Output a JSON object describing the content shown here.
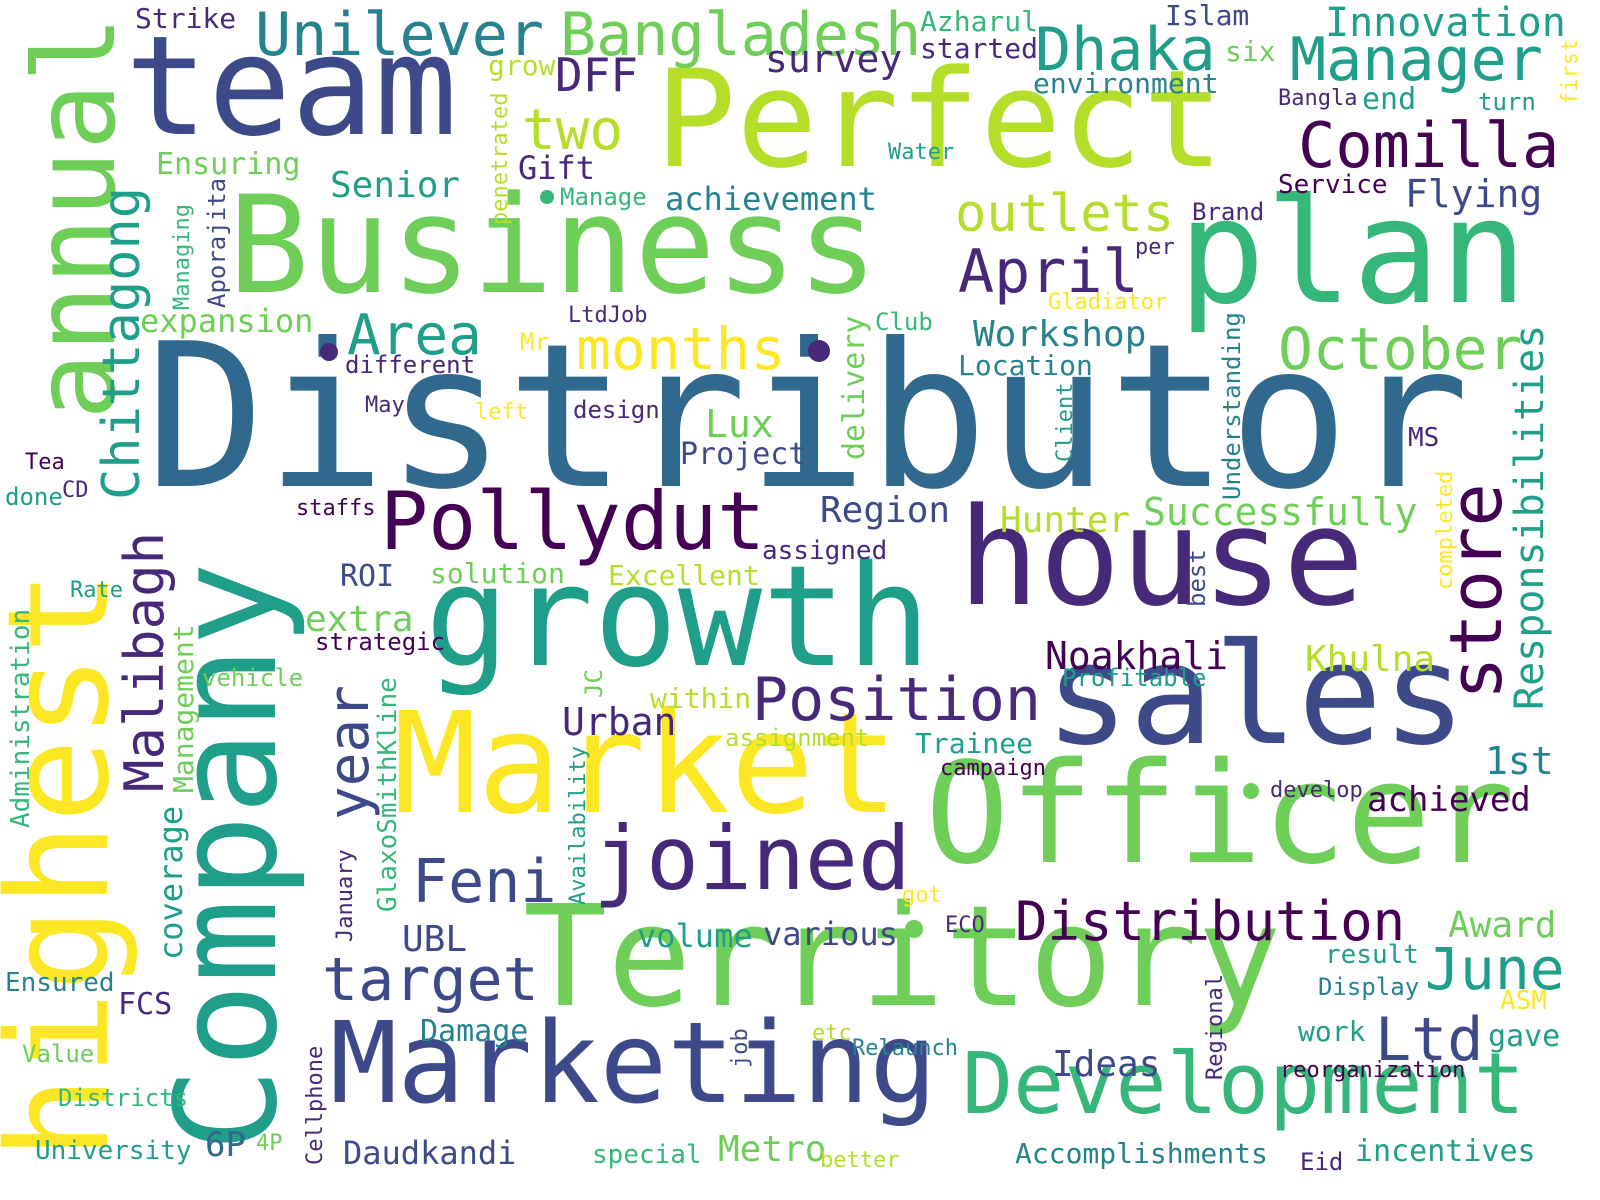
{
  "palette": {
    "c1": "#440154",
    "c2": "#482878",
    "c3": "#3e4989",
    "c4": "#31688e",
    "c5": "#26828e",
    "c6": "#1f9e89",
    "c7": "#35b779",
    "c8": "#6ece58",
    "c9": "#b5de2b",
    "c10": "#fde725"
  },
  "words": [
    {
      "id": "distributor",
      "text": "Distributor"
    },
    {
      "id": "perfect",
      "text": "Perfect"
    },
    {
      "id": "business",
      "text": "Business"
    },
    {
      "id": "plan",
      "text": "plan"
    },
    {
      "id": "team",
      "text": "team"
    },
    {
      "id": "growth",
      "text": "growth"
    },
    {
      "id": "house",
      "text": "house"
    },
    {
      "id": "sales",
      "text": "sales"
    },
    {
      "id": "market",
      "text": "Market"
    },
    {
      "id": "officer",
      "text": "Officer"
    },
    {
      "id": "territory",
      "text": "Territory"
    },
    {
      "id": "company",
      "text": "Company"
    },
    {
      "id": "highest",
      "text": "highest"
    },
    {
      "id": "annual",
      "text": "annual"
    },
    {
      "id": "marketing",
      "text": "Marketing"
    },
    {
      "id": "development",
      "text": "Development"
    },
    {
      "id": "joined",
      "text": "joined"
    },
    {
      "id": "pollydut",
      "text": "Pollydut"
    },
    {
      "id": "unilever",
      "text": "Unilever"
    },
    {
      "id": "bangladesh",
      "text": "Bangladesh"
    },
    {
      "id": "dhaka",
      "text": "Dhaka"
    },
    {
      "id": "manager",
      "text": "Manager"
    },
    {
      "id": "innovation",
      "text": "Innovation"
    },
    {
      "id": "comilla",
      "text": "Comilla"
    },
    {
      "id": "store",
      "text": "store"
    },
    {
      "id": "responsibilities",
      "text": "Responsibilities"
    },
    {
      "id": "october",
      "text": "October"
    },
    {
      "id": "april",
      "text": "April"
    },
    {
      "id": "outlets",
      "text": "outlets"
    },
    {
      "id": "months",
      "text": "months"
    },
    {
      "id": "area",
      "text": "Area"
    },
    {
      "id": "chittagong",
      "text": "Chittagong"
    },
    {
      "id": "malibagh",
      "text": "Malibagh"
    },
    {
      "id": "position",
      "text": "Position"
    },
    {
      "id": "distribution",
      "text": "Distribution"
    },
    {
      "id": "feni",
      "text": "Feni"
    },
    {
      "id": "target",
      "text": "target"
    },
    {
      "id": "year",
      "text": "year"
    },
    {
      "id": "ltd",
      "text": "Ltd"
    },
    {
      "id": "june",
      "text": "June"
    },
    {
      "id": "dff",
      "text": "DFF"
    },
    {
      "id": "two",
      "text": "two"
    },
    {
      "id": "survey",
      "text": "survey"
    },
    {
      "id": "strike",
      "text": "Strike"
    },
    {
      "id": "azharul",
      "text": "Azharul"
    },
    {
      "id": "started",
      "text": "started"
    },
    {
      "id": "islam",
      "text": "Islam"
    },
    {
      "id": "six",
      "text": "six"
    },
    {
      "id": "environment",
      "text": "environment"
    },
    {
      "id": "grow",
      "text": "grow"
    },
    {
      "id": "bangla",
      "text": "Bangla"
    },
    {
      "id": "end",
      "text": "end"
    },
    {
      "id": "turn",
      "text": "turn"
    },
    {
      "id": "first",
      "text": "first"
    },
    {
      "id": "water",
      "text": "Water"
    },
    {
      "id": "service",
      "text": "Service"
    },
    {
      "id": "flying",
      "text": "Flying"
    },
    {
      "id": "brand",
      "text": "Brand"
    },
    {
      "id": "per",
      "text": "per"
    },
    {
      "id": "gladiator",
      "text": "Gladiator"
    },
    {
      "id": "ensuring",
      "text": "Ensuring"
    },
    {
      "id": "senior",
      "text": "Senior"
    },
    {
      "id": "gift",
      "text": "Gift"
    },
    {
      "id": "manage",
      "text": "Manage"
    },
    {
      "id": "penetrated",
      "text": "penetrated"
    },
    {
      "id": "achievement",
      "text": "achievement"
    },
    {
      "id": "managing",
      "text": "Managing"
    },
    {
      "id": "aporajita",
      "text": "Aporajita"
    },
    {
      "id": "expansion",
      "text": "expansion"
    },
    {
      "id": "ltdjob",
      "text": "LtdJob"
    },
    {
      "id": "club",
      "text": "Club"
    },
    {
      "id": "workshop",
      "text": "Workshop"
    },
    {
      "id": "location",
      "text": "Location"
    },
    {
      "id": "mr",
      "text": "Mr"
    },
    {
      "id": "different",
      "text": "different"
    },
    {
      "id": "may",
      "text": "May"
    },
    {
      "id": "left",
      "text": "left"
    },
    {
      "id": "design",
      "text": "design"
    },
    {
      "id": "lux",
      "text": "Lux"
    },
    {
      "id": "project",
      "text": "Project"
    },
    {
      "id": "delivery",
      "text": "delivery"
    },
    {
      "id": "client",
      "text": "Client"
    },
    {
      "id": "understanding",
      "text": "Understanding"
    },
    {
      "id": "ms",
      "text": "MS"
    },
    {
      "id": "tea",
      "text": "Tea"
    },
    {
      "id": "done",
      "text": "done"
    },
    {
      "id": "cd",
      "text": "CD"
    },
    {
      "id": "staffs",
      "text": "staffs"
    },
    {
      "id": "region",
      "text": "Region"
    },
    {
      "id": "hunter",
      "text": "Hunter"
    },
    {
      "id": "successfully",
      "text": "Successfully"
    },
    {
      "id": "completed",
      "text": "completed"
    },
    {
      "id": "assigned",
      "text": "assigned"
    },
    {
      "id": "roi",
      "text": "ROI"
    },
    {
      "id": "solution",
      "text": "solution"
    },
    {
      "id": "excellent",
      "text": "Excellent"
    },
    {
      "id": "rate",
      "text": "Rate"
    },
    {
      "id": "best",
      "text": "best"
    },
    {
      "id": "extra",
      "text": "extra"
    },
    {
      "id": "strategic",
      "text": "strategic"
    },
    {
      "id": "noakhali",
      "text": "Noakhali"
    },
    {
      "id": "khulna",
      "text": "Khulna"
    },
    {
      "id": "administration",
      "text": "Administration"
    },
    {
      "id": "management",
      "text": "Management"
    },
    {
      "id": "vehicle",
      "text": "vehicle"
    },
    {
      "id": "profitable",
      "text": "Profitable"
    },
    {
      "id": "jc",
      "text": "JC"
    },
    {
      "id": "within",
      "text": "within"
    },
    {
      "id": "urban",
      "text": "Urban"
    },
    {
      "id": "assignment",
      "text": "assignment"
    },
    {
      "id": "trainee",
      "text": "Trainee"
    },
    {
      "id": "first1st",
      "text": "1st"
    },
    {
      "id": "glaxosmithkline",
      "text": "GlaxoSmithKline"
    },
    {
      "id": "availability",
      "text": "Availability"
    },
    {
      "id": "campaign",
      "text": "campaign"
    },
    {
      "id": "develop",
      "text": "develop"
    },
    {
      "id": "achieved",
      "text": "achieved"
    },
    {
      "id": "coverage",
      "text": "coverage"
    },
    {
      "id": "january",
      "text": "January"
    },
    {
      "id": "got",
      "text": "got"
    },
    {
      "id": "eco",
      "text": "ECO"
    },
    {
      "id": "volume",
      "text": "volume"
    },
    {
      "id": "various",
      "text": "various"
    },
    {
      "id": "award",
      "text": "Award"
    },
    {
      "id": "ubl",
      "text": "UBL"
    },
    {
      "id": "result",
      "text": "result"
    },
    {
      "id": "display",
      "text": "Display"
    },
    {
      "id": "ensured",
      "text": "Ensured"
    },
    {
      "id": "fcs",
      "text": "FCS"
    },
    {
      "id": "asm",
      "text": "ASM"
    },
    {
      "id": "damage",
      "text": "Damage"
    },
    {
      "id": "work",
      "text": "work"
    },
    {
      "id": "gave",
      "text": "gave"
    },
    {
      "id": "cellphone",
      "text": "Cellphone"
    },
    {
      "id": "job",
      "text": "job"
    },
    {
      "id": "etc",
      "text": "etc"
    },
    {
      "id": "relaunch",
      "text": "Relaunch"
    },
    {
      "id": "value",
      "text": "Value"
    },
    {
      "id": "ideas",
      "text": "Ideas"
    },
    {
      "id": "regional",
      "text": "Regional"
    },
    {
      "id": "reorganization",
      "text": "reorganization"
    },
    {
      "id": "districts",
      "text": "Districts"
    },
    {
      "id": "university",
      "text": "University"
    },
    {
      "id": "sixp",
      "text": "6P"
    },
    {
      "id": "fourp",
      "text": "4P"
    },
    {
      "id": "daudkandi",
      "text": "Daudkandi"
    },
    {
      "id": "special",
      "text": "special"
    },
    {
      "id": "metro",
      "text": "Metro"
    },
    {
      "id": "better",
      "text": "better"
    },
    {
      "id": "accomplishments",
      "text": "Accomplishments"
    },
    {
      "id": "eid",
      "text": "Eid"
    },
    {
      "id": "incentives",
      "text": "incentives"
    }
  ]
}
